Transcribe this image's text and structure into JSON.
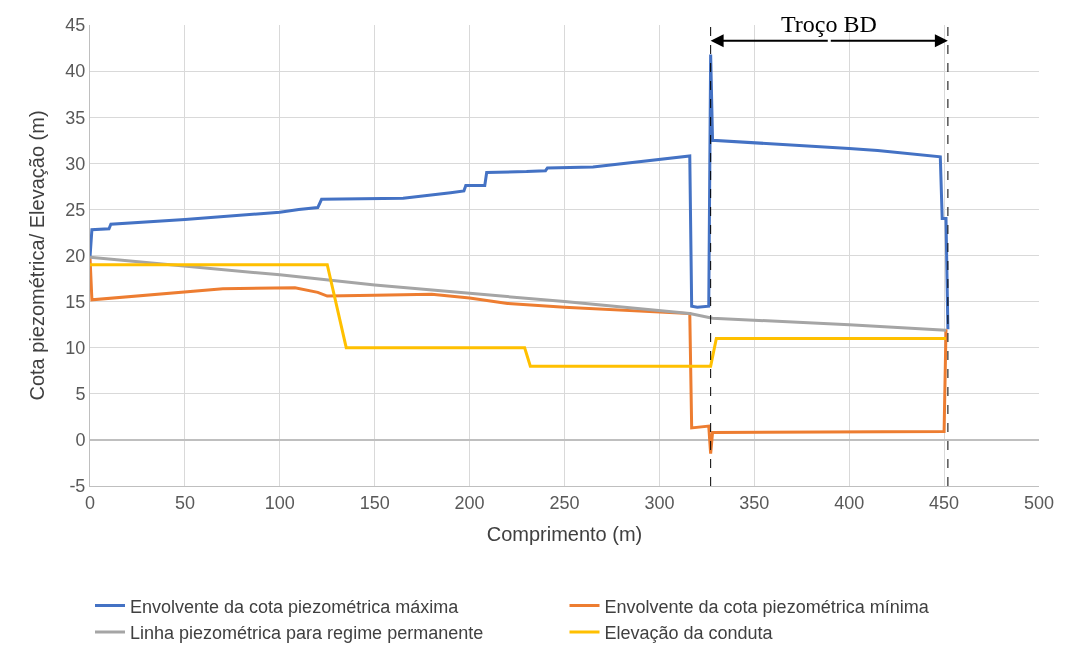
{
  "chart_data": {
    "type": "line",
    "xlabel": "Comprimento (m)",
    "ylabel": "Cota piezométrica/ Elevação (m)",
    "xlim": [
      0,
      500
    ],
    "xticks": [
      0,
      50,
      100,
      150,
      200,
      250,
      300,
      350,
      400,
      450,
      500
    ],
    "ylim": [
      -5,
      45
    ],
    "yticks": [
      -5,
      0,
      5,
      10,
      15,
      20,
      25,
      30,
      35,
      40,
      45
    ],
    "grid": true,
    "legend": "bottom",
    "line_style": "solid",
    "marker": "none",
    "series": [
      {
        "name": "Envolvente da cota piezométrica máxima",
        "color": "#4472c4",
        "x": [
          0,
          1,
          10,
          11,
          50,
          100,
          110,
          120,
          122,
          165,
          190,
          197,
          198,
          208,
          209,
          230,
          240,
          241,
          265,
          316,
          317,
          320,
          326,
          327,
          328,
          400,
          415,
          448,
          449,
          451,
          452
        ],
        "values": [
          19.8,
          22.8,
          22.9,
          23.4,
          23.9,
          24.7,
          25.0,
          25.2,
          26.1,
          26.2,
          26.8,
          27.0,
          27.6,
          27.6,
          29.0,
          29.1,
          29.2,
          29.5,
          29.6,
          30.8,
          14.5,
          14.4,
          14.5,
          41.8,
          32.5,
          31.6,
          31.4,
          30.7,
          24.0,
          24.0,
          12.0
        ]
      },
      {
        "name": "Envolvente da cota piezométrica mínima",
        "color": "#ed7d31",
        "x": [
          0,
          1,
          70,
          108,
          120,
          125,
          150,
          180,
          200,
          220,
          250,
          316,
          317,
          326,
          327,
          328,
          450,
          451
        ],
        "values": [
          19.8,
          15.2,
          16.4,
          16.5,
          16.0,
          15.6,
          15.7,
          15.8,
          15.4,
          14.8,
          14.4,
          13.7,
          1.3,
          1.5,
          -1.5,
          0.8,
          0.9,
          12.0
        ]
      },
      {
        "name": "Linha piezométrica para regime permanente",
        "color": "#a5a5a5",
        "x": [
          0,
          100,
          150,
          200,
          250,
          316,
          328,
          400,
          451
        ],
        "values": [
          19.8,
          17.9,
          16.8,
          15.9,
          15.0,
          13.7,
          13.2,
          12.5,
          11.9
        ]
      },
      {
        "name": "Elevação da conduta",
        "color": "#ffc000",
        "x": [
          0,
          125,
          135,
          229,
          232,
          327,
          330,
          451
        ],
        "values": [
          19.0,
          19.0,
          10.0,
          10.0,
          8.0,
          8.0,
          11.0,
          11.0
        ]
      }
    ],
    "ref_lines": [
      {
        "axis": "x",
        "value": 327,
        "color": "#000000",
        "line_style": "dashed"
      },
      {
        "axis": "x",
        "value": 452,
        "color": "#000000",
        "line_style": "dashed"
      }
    ],
    "annotations": [
      {
        "text": "Troço BD",
        "x": 327,
        "y": 43.3
      }
    ]
  }
}
